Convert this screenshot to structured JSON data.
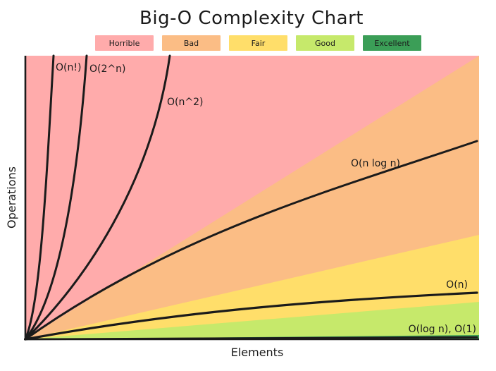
{
  "chart_data": {
    "type": "area",
    "title": "Big-O Complexity Chart",
    "xlabel": "Elements",
    "ylabel": "Operations",
    "grid": false,
    "legend_position": "top-center",
    "regions": [
      {
        "name": "Horrible",
        "color": "#ffabab"
      },
      {
        "name": "Bad",
        "color": "#fbbd85"
      },
      {
        "name": "Fair",
        "color": "#ffde6a"
      },
      {
        "name": "Good",
        "color": "#c6e96b"
      },
      {
        "name": "Excellent",
        "color": "#3b9e57"
      }
    ],
    "series": [
      {
        "name": "O(n!)"
      },
      {
        "name": "O(2^n)"
      },
      {
        "name": "O(n^2)"
      },
      {
        "name": "O(n log n)"
      },
      {
        "name": "O(n)"
      },
      {
        "name": "O(log n), O(1)"
      }
    ]
  },
  "colors": {
    "line": "#1b1b1b",
    "legend_text": "#3a3a3a"
  }
}
